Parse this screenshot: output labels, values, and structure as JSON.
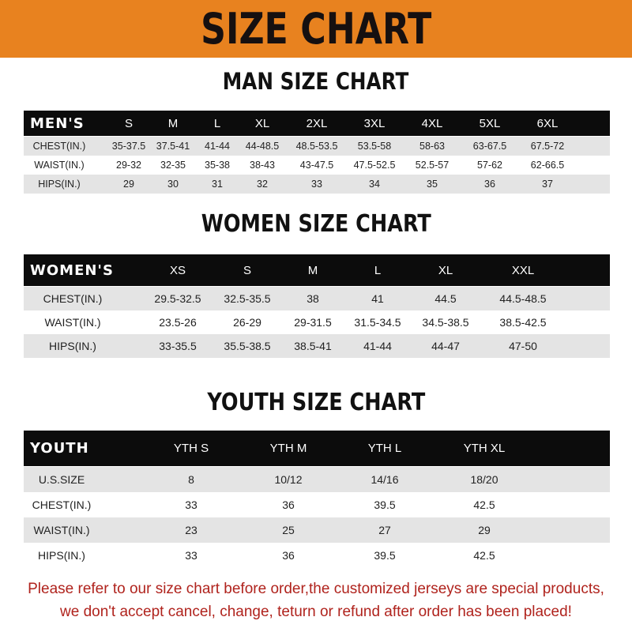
{
  "header": {
    "title": "SIZE CHART",
    "color": "#e8821f"
  },
  "men": {
    "title": "MAN SIZE CHART",
    "columns": [
      "MEN'S",
      "S",
      "M",
      "L",
      "XL",
      "2XL",
      "3XL",
      "4XL",
      "5XL",
      "6XL"
    ],
    "rows": [
      [
        "CHEST(IN.)",
        "35-37.5",
        "37.5-41",
        "41-44",
        "44-48.5",
        "48.5-53.5",
        "53.5-58",
        "58-63",
        "63-67.5",
        "67.5-72"
      ],
      [
        "WAIST(IN.)",
        "29-32",
        "32-35",
        "35-38",
        "38-43",
        "43-47.5",
        "47.5-52.5",
        "52.5-57",
        "57-62",
        "62-66.5"
      ],
      [
        "HIPS(IN.)",
        "29",
        "30",
        "31",
        "32",
        "33",
        "34",
        "35",
        "36",
        "37"
      ]
    ]
  },
  "women": {
    "title": "WOMEN SIZE CHART",
    "columns": [
      "WOMEN'S",
      "XS",
      "S",
      "M",
      "L",
      "XL",
      "XXL"
    ],
    "rows": [
      [
        "CHEST(IN.)",
        "29.5-32.5",
        "32.5-35.5",
        "38",
        "41",
        "44.5",
        "44.5-48.5"
      ],
      [
        "WAIST(IN.)",
        "23.5-26",
        "26-29",
        "29-31.5",
        "31.5-34.5",
        "34.5-38.5",
        "38.5-42.5"
      ],
      [
        "HIPS(IN.)",
        "33-35.5",
        "35.5-38.5",
        "38.5-41",
        "41-44",
        "44-47",
        "47-50"
      ]
    ]
  },
  "youth": {
    "title": "YOUTH SIZE CHART",
    "columns": [
      "YOUTH",
      "YTH S",
      "YTH M",
      "YTH L",
      "YTH XL"
    ],
    "rows": [
      [
        "U.S.SIZE",
        "8",
        "10/12",
        "14/16",
        "18/20"
      ],
      [
        "CHEST(IN.)",
        "33",
        "36",
        "39.5",
        "42.5"
      ],
      [
        "WAIST(IN.)",
        "23",
        "25",
        "27",
        "29"
      ],
      [
        "HIPS(IN.)",
        "33",
        "36",
        "39.5",
        "42.5"
      ]
    ]
  },
  "note": {
    "line1": "Please refer to our size chart before order,the customized jerseys are special products,",
    "line2": "we don't accept cancel, change, teturn or refund after order has been placed!",
    "color": "#b0231d"
  }
}
